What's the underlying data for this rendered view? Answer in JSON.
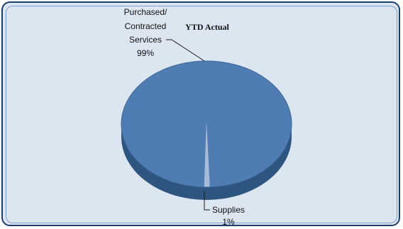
{
  "chart_data": {
    "type": "pie",
    "title": "YTD Actual",
    "slices": [
      {
        "label": "Purchased/ Contracted Services",
        "label_lines": [
          "Purchased/",
          "Contracted",
          "Services"
        ],
        "percent_label": "99%",
        "value": 99
      },
      {
        "label": "Supplies",
        "label_lines": [
          "Supplies"
        ],
        "percent_label": "1%",
        "value": 1
      }
    ],
    "legend": "none",
    "style": "3d"
  },
  "colors": {
    "main_slice": "#4f7cb3",
    "minor_slice": "#a7bcd8",
    "side": "#2e557f",
    "background": "#dce6f1",
    "border": "#1f3f6b"
  }
}
